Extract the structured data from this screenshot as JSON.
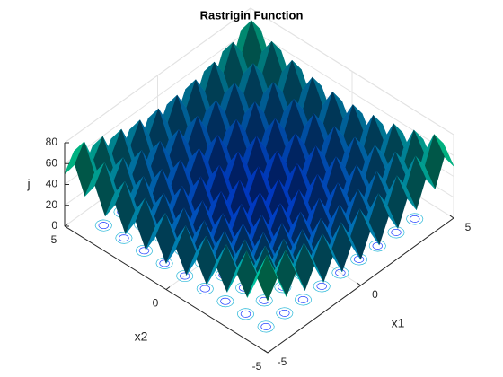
{
  "chart_data": {
    "type": "surface",
    "title": "Rastrigin Function",
    "xlabel": "x1",
    "ylabel": "x2",
    "zlabel": "j",
    "x": [
      -5,
      -4.5,
      -4,
      -3.5,
      -3,
      -2.5,
      -2,
      -1.5,
      -1,
      -0.5,
      0,
      0.5,
      1,
      1.5,
      2,
      2.5,
      3,
      3.5,
      4,
      4.5,
      5
    ],
    "y": [
      -5,
      -4.5,
      -4,
      -3.5,
      -3,
      -2.5,
      -2,
      -1.5,
      -1,
      -0.5,
      0,
      0.5,
      1,
      1.5,
      2,
      2.5,
      3,
      3.5,
      4,
      4.5,
      5
    ],
    "z": [
      [
        50,
        65.25,
        41,
        57.25,
        34,
        51.25,
        29,
        47.25,
        26,
        45.25,
        25,
        45.25,
        26,
        47.25,
        29,
        51.25,
        34,
        57.25,
        41,
        65.25,
        50
      ],
      [
        65.25,
        80.5,
        56.25,
        72.5,
        49.25,
        66.5,
        44.25,
        62.5,
        41.25,
        60.5,
        40.25,
        60.5,
        41.25,
        62.5,
        44.25,
        66.5,
        49.25,
        72.5,
        56.25,
        80.5,
        65.25
      ],
      [
        41,
        56.25,
        32,
        48.25,
        25,
        42.25,
        20,
        38.25,
        17,
        36.25,
        16,
        36.25,
        17,
        38.25,
        20,
        42.25,
        25,
        48.25,
        32,
        56.25,
        41
      ],
      [
        57.25,
        72.5,
        48.25,
        64.5,
        41.25,
        58.5,
        36.25,
        54.5,
        33.25,
        52.5,
        32.25,
        52.5,
        33.25,
        54.5,
        36.25,
        58.5,
        41.25,
        64.5,
        48.25,
        72.5,
        57.25
      ],
      [
        34,
        49.25,
        25,
        41.25,
        18,
        35.25,
        13,
        31.25,
        10,
        29.25,
        9,
        29.25,
        10,
        31.25,
        13,
        35.25,
        18,
        41.25,
        25,
        49.25,
        34
      ],
      [
        51.25,
        66.5,
        42.25,
        58.5,
        35.25,
        52.5,
        30.25,
        48.5,
        27.25,
        46.5,
        26.25,
        46.5,
        27.25,
        48.5,
        30.25,
        52.5,
        35.25,
        58.5,
        42.25,
        66.5,
        51.25
      ],
      [
        29,
        44.25,
        20,
        36.25,
        13,
        30.25,
        8,
        26.25,
        5,
        24.25,
        4,
        24.25,
        5,
        26.25,
        8,
        30.25,
        13,
        36.25,
        20,
        44.25,
        29
      ],
      [
        47.25,
        62.5,
        38.25,
        54.5,
        31.25,
        48.5,
        26.25,
        44.5,
        23.25,
        42.5,
        22.25,
        42.5,
        23.25,
        44.5,
        26.25,
        48.5,
        31.25,
        54.5,
        38.25,
        62.5,
        47.25
      ],
      [
        26,
        41.25,
        17,
        33.25,
        10,
        27.25,
        5,
        23.25,
        2,
        21.25,
        1,
        21.25,
        2,
        23.25,
        5,
        27.25,
        10,
        33.25,
        17,
        41.25,
        26
      ],
      [
        45.25,
        60.5,
        36.25,
        52.5,
        29.25,
        46.5,
        24.25,
        42.5,
        21.25,
        40.5,
        20.25,
        40.5,
        21.25,
        42.5,
        24.25,
        46.5,
        29.25,
        52.5,
        36.25,
        60.5,
        45.25
      ],
      [
        25,
        40.25,
        16,
        32.25,
        9,
        26.25,
        4,
        22.25,
        1,
        20.25,
        0,
        20.25,
        1,
        22.25,
        4,
        26.25,
        9,
        32.25,
        16,
        40.25,
        25
      ],
      [
        45.25,
        60.5,
        36.25,
        52.5,
        29.25,
        46.5,
        24.25,
        42.5,
        21.25,
        40.5,
        20.25,
        40.5,
        21.25,
        42.5,
        24.25,
        46.5,
        29.25,
        52.5,
        36.25,
        60.5,
        45.25
      ],
      [
        26,
        41.25,
        17,
        33.25,
        10,
        27.25,
        5,
        23.25,
        2,
        21.25,
        1,
        21.25,
        2,
        23.25,
        5,
        27.25,
        10,
        33.25,
        17,
        41.25,
        26
      ],
      [
        47.25,
        62.5,
        38.25,
        54.5,
        31.25,
        48.5,
        26.25,
        44.5,
        23.25,
        42.5,
        22.25,
        42.5,
        23.25,
        44.5,
        26.25,
        48.5,
        31.25,
        54.5,
        38.25,
        62.5,
        47.25
      ],
      [
        29,
        44.25,
        20,
        36.25,
        13,
        30.25,
        8,
        26.25,
        5,
        24.25,
        4,
        24.25,
        5,
        26.25,
        8,
        30.25,
        13,
        36.25,
        20,
        44.25,
        29
      ],
      [
        51.25,
        66.5,
        42.25,
        58.5,
        35.25,
        52.5,
        30.25,
        48.5,
        27.25,
        46.5,
        26.25,
        46.5,
        27.25,
        48.5,
        30.25,
        52.5,
        35.25,
        58.5,
        42.25,
        66.5,
        51.25
      ],
      [
        34,
        49.25,
        25,
        41.25,
        18,
        35.25,
        13,
        31.25,
        10,
        29.25,
        9,
        29.25,
        10,
        31.25,
        13,
        35.25,
        18,
        41.25,
        25,
        49.25,
        34
      ],
      [
        57.25,
        72.5,
        48.25,
        64.5,
        41.25,
        58.5,
        36.25,
        54.5,
        33.25,
        52.5,
        32.25,
        52.5,
        33.25,
        54.5,
        36.25,
        58.5,
        41.25,
        64.5,
        48.25,
        72.5,
        57.25
      ],
      [
        41,
        56.25,
        32,
        48.25,
        25,
        42.25,
        20,
        38.25,
        17,
        36.25,
        16,
        36.25,
        17,
        38.25,
        20,
        42.25,
        25,
        48.25,
        32,
        56.25,
        41
      ],
      [
        65.25,
        80.5,
        56.25,
        72.5,
        49.25,
        66.5,
        44.25,
        62.5,
        41.25,
        60.5,
        40.25,
        60.5,
        41.25,
        62.5,
        44.25,
        66.5,
        49.25,
        72.5,
        56.25,
        80.5,
        65.25
      ],
      [
        50,
        65.25,
        41,
        57.25,
        34,
        51.25,
        29,
        47.25,
        26,
        45.25,
        25,
        45.25,
        26,
        47.25,
        29,
        51.25,
        34,
        57.25,
        41,
        65.25,
        50
      ]
    ],
    "xlim": [
      -5,
      5
    ],
    "ylim": [
      -5,
      5
    ],
    "zlim": [
      0,
      80
    ],
    "xticks": [
      -5,
      0,
      5
    ],
    "yticks": [
      -5,
      0,
      5
    ],
    "zticks": [
      0,
      20,
      40,
      60,
      80
    ],
    "colormap": [
      "#0000ff",
      "#00ff80"
    ],
    "grid": true
  }
}
